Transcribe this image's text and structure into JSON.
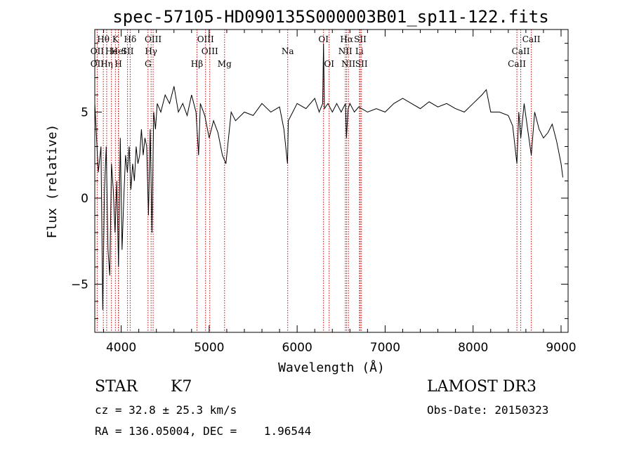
{
  "chart_data": {
    "type": "line",
    "title": "spec-57105-HD090135S000003B01_sp11-122.fits",
    "xlabel": "Wavelength (Å)",
    "ylabel": "Flux (relative)",
    "xlim": [
      3700,
      9080
    ],
    "ylim": [
      -7.8,
      9.8
    ],
    "xticks": [
      4000,
      5000,
      6000,
      7000,
      8000,
      9000
    ],
    "xtick_labels": [
      "4000",
      "5000",
      "6000",
      "7000",
      "8000",
      "9000"
    ],
    "yticks": [
      -5,
      0,
      5
    ],
    "ytick_labels": [
      "−5",
      "0",
      "5"
    ],
    "grid": false,
    "line_color": "#000000",
    "marker_color": "#cc0000",
    "spectral_lines": [
      {
        "label": "Hθ",
        "wavelength": 3797,
        "row": 1
      },
      {
        "label": "K",
        "wavelength": 3934,
        "row": 1
      },
      {
        "label": "Hδ",
        "wavelength": 4102,
        "row": 1
      },
      {
        "label": "OIII",
        "wavelength": 4363,
        "row": 1
      },
      {
        "label": "OIII",
        "wavelength": 4959,
        "row": 1
      },
      {
        "label": "OI",
        "wavelength": 6300,
        "row": 1
      },
      {
        "label": "Hα",
        "wavelength": 6563,
        "row": 1
      },
      {
        "label": "SII",
        "wavelength": 6717,
        "row": 1
      },
      {
        "label": "CaII",
        "wavelength": 8662,
        "row": 1
      },
      {
        "label": "OII",
        "wavelength": 3727,
        "row": 2
      },
      {
        "label": "He",
        "wavelength": 3889,
        "row": 2
      },
      {
        "label": "HeI",
        "wavelength": 3970,
        "row": 2
      },
      {
        "label": "SII",
        "wavelength": 4072,
        "row": 2
      },
      {
        "label": "Hγ",
        "wavelength": 4340,
        "row": 2
      },
      {
        "label": "OIII",
        "wavelength": 5007,
        "row": 2
      },
      {
        "label": "Na",
        "wavelength": 5893,
        "row": 2
      },
      {
        "label": "NII",
        "wavelength": 6548,
        "row": 2
      },
      {
        "label": "Li",
        "wavelength": 6708,
        "row": 2
      },
      {
        "label": "CaII",
        "wavelength": 8542,
        "row": 2
      },
      {
        "label": "OII",
        "wavelength": 3727,
        "row": 3
      },
      {
        "label": "Hη",
        "wavelength": 3835,
        "row": 3
      },
      {
        "label": "H",
        "wavelength": 3968,
        "row": 3
      },
      {
        "label": "G",
        "wavelength": 4305,
        "row": 3
      },
      {
        "label": "Hβ",
        "wavelength": 4861,
        "row": 3
      },
      {
        "label": "Mg",
        "wavelength": 5175,
        "row": 3
      },
      {
        "label": "OI",
        "wavelength": 6364,
        "row": 3
      },
      {
        "label": "NII",
        "wavelength": 6583,
        "row": 3
      },
      {
        "label": "SII",
        "wavelength": 6731,
        "row": 3
      },
      {
        "label": "CaII",
        "wavelength": 8498,
        "row": 3
      }
    ],
    "series": [
      {
        "name": "flux",
        "x": [
          3700,
          3740,
          3770,
          3790,
          3810,
          3830,
          3850,
          3870,
          3890,
          3910,
          3930,
          3950,
          3970,
          3990,
          4010,
          4030,
          4050,
          4070,
          4090,
          4110,
          4130,
          4150,
          4170,
          4190,
          4210,
          4230,
          4250,
          4270,
          4290,
          4310,
          4330,
          4350,
          4370,
          4390,
          4410,
          4450,
          4500,
          4550,
          4600,
          4650,
          4700,
          4750,
          4800,
          4850,
          4880,
          4900,
          4950,
          5000,
          5050,
          5100,
          5150,
          5190,
          5250,
          5300,
          5400,
          5500,
          5600,
          5700,
          5800,
          5850,
          5890,
          5900,
          5950,
          6000,
          6100,
          6200,
          6250,
          6290,
          6300,
          6310,
          6350,
          6400,
          6450,
          6500,
          6550,
          6560,
          6580,
          6600,
          6650,
          6700,
          6800,
          6900,
          7000,
          7100,
          7200,
          7300,
          7400,
          7500,
          7600,
          7700,
          7800,
          7900,
          8000,
          8100,
          8150,
          8200,
          8300,
          8400,
          8450,
          8498,
          8520,
          8542,
          8580,
          8620,
          8662,
          8700,
          8750,
          8800,
          8850,
          8900,
          8950,
          9000,
          9020
        ],
        "y": [
          5.5,
          1.5,
          3.0,
          -6.5,
          0.5,
          3.0,
          -3.0,
          -4.5,
          2.0,
          0.5,
          -2.0,
          1.0,
          -4.0,
          3.5,
          -3.0,
          0.0,
          2.5,
          1.5,
          3.0,
          0.5,
          2.0,
          1.0,
          3.0,
          2.0,
          2.5,
          4.0,
          2.5,
          3.5,
          3.0,
          -1.0,
          4.0,
          -2.0,
          5.0,
          4.0,
          5.5,
          5.0,
          6.0,
          5.5,
          6.5,
          5.0,
          5.5,
          4.8,
          6.0,
          5.0,
          2.5,
          5.5,
          4.8,
          3.5,
          4.5,
          3.8,
          2.5,
          2.0,
          5.0,
          4.5,
          5.0,
          4.8,
          5.5,
          5.0,
          5.3,
          4.0,
          2.0,
          4.5,
          5.0,
          5.5,
          5.2,
          5.8,
          5.0,
          5.5,
          9.0,
          5.2,
          5.5,
          5.0,
          5.5,
          5.0,
          5.5,
          3.5,
          5.2,
          5.5,
          5.0,
          5.3,
          5.0,
          5.2,
          5.0,
          5.5,
          5.8,
          5.5,
          5.2,
          5.6,
          5.3,
          5.5,
          5.2,
          5.0,
          5.5,
          6.0,
          6.3,
          5.0,
          5.0,
          4.8,
          4.2,
          2.0,
          5.0,
          3.5,
          5.5,
          4.0,
          2.5,
          5.0,
          4.0,
          3.5,
          3.8,
          4.3,
          3.3,
          2.0,
          1.2
        ]
      }
    ]
  },
  "info": {
    "object_class": "STAR",
    "subclass": "K7",
    "survey": "LAMOST DR3",
    "cz": "cz = 32.8 ± 25.3 km/s",
    "obs_date": "Obs-Date: 20150323",
    "radec": "RA = 136.05004, DEC =    1.96544"
  }
}
